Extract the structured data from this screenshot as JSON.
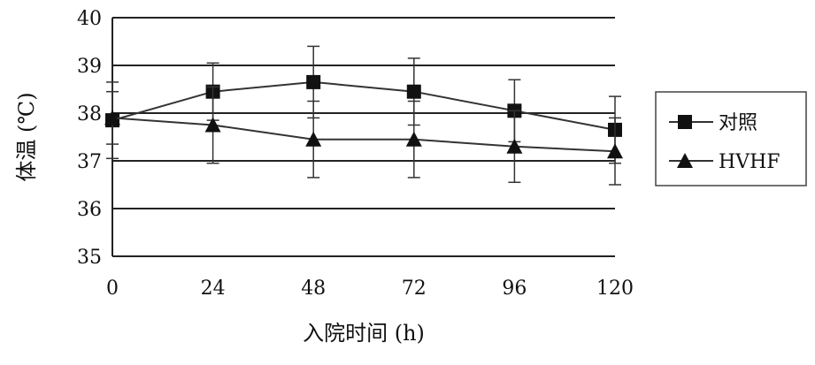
{
  "chart_data": {
    "type": "line",
    "xlabel": "入院时间 (h)",
    "ylabel": "体温 (℃)",
    "x": [
      0,
      24,
      48,
      72,
      96,
      120
    ],
    "xlim": [
      0,
      120
    ],
    "ylim": [
      35,
      40
    ],
    "yticks": [
      35,
      36,
      37,
      38,
      39,
      40
    ],
    "grid": true,
    "legend_position": "right",
    "series": [
      {
        "name": "对照",
        "marker": "square",
        "values": [
          37.85,
          38.45,
          38.65,
          38.45,
          38.05,
          37.65
        ],
        "error": [
          0.8,
          0.6,
          0.75,
          0.7,
          0.65,
          0.7
        ]
      },
      {
        "name": "HVHF",
        "marker": "triangle",
        "values": [
          37.9,
          37.75,
          37.45,
          37.45,
          37.3,
          37.2
        ],
        "error": [
          0.55,
          0.8,
          0.8,
          0.8,
          0.75,
          0.7
        ]
      }
    ],
    "colors": {
      "line": "#333333",
      "grid": "#222222",
      "marker": "#111111"
    }
  }
}
